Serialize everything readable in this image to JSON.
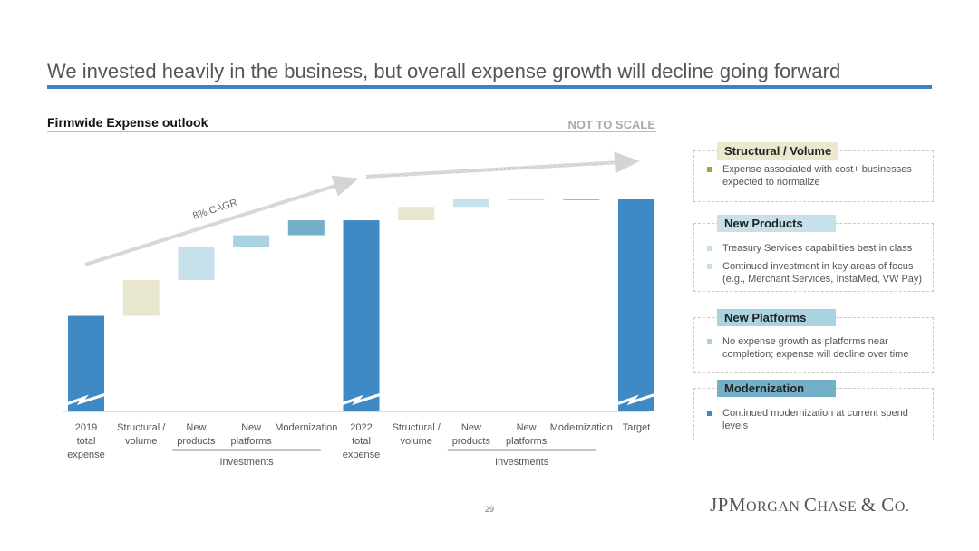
{
  "title": "We invested heavily in the business, but overall expense growth will decline going forward",
  "subtitle": "Firmwide Expense outlook",
  "scale_note": "NOT TO SCALE",
  "cagr_label": "8% CAGR",
  "page_number": "29",
  "logo_text": "JPMorgan Chase & Co.",
  "colors": {
    "total": "#3f89c5",
    "structural": "#e8e6cf",
    "new_products": "#c6e1ea",
    "new_platforms": "#a9d3e1",
    "modernization": "#73afc6",
    "accent_rule": "#3b84c2"
  },
  "chart_data": {
    "type": "bar",
    "subtype": "waterfall",
    "title": "Firmwide Expense outlook",
    "note": "NOT TO SCALE",
    "categories": [
      "2019 total expense",
      "Structural / volume",
      "New products",
      "New platforms",
      "Modernization",
      "2022 total expense",
      "Structural / volume",
      "New products",
      "New platforms",
      "Modernization",
      "Target"
    ],
    "tick_labels": [
      [
        "2019",
        "total",
        "expense"
      ],
      [
        "Structural /",
        "volume"
      ],
      [
        "New",
        "products"
      ],
      [
        "New",
        "platforms"
      ],
      [
        "Modernization"
      ],
      [
        "2022",
        "total",
        "expense"
      ],
      [
        "Structural /",
        "volume"
      ],
      [
        "New",
        "products"
      ],
      [
        "New",
        "platforms"
      ],
      [
        "Modernization"
      ],
      [
        "Target"
      ]
    ],
    "bars": [
      {
        "kind": "total",
        "value": 100
      },
      {
        "kind": "structural",
        "start": 100,
        "end": 112
      },
      {
        "kind": "new_products",
        "start": 112,
        "end": 123
      },
      {
        "kind": "new_platforms",
        "start": 123,
        "end": 127
      },
      {
        "kind": "modernization",
        "start": 127,
        "end": 132
      },
      {
        "kind": "total",
        "value": 132
      },
      {
        "kind": "structural",
        "start": 132,
        "end": 136.5
      },
      {
        "kind": "new_products",
        "start": 136.5,
        "end": 139
      },
      {
        "kind": "new_platforms",
        "start": 139,
        "end": 139
      },
      {
        "kind": "modernization",
        "start": 139,
        "end": 139
      },
      {
        "kind": "total",
        "value": 139
      }
    ],
    "group_labels": [
      {
        "label": "Investments",
        "from": 2,
        "to": 4
      },
      {
        "label": "Investments",
        "from": 7,
        "to": 9
      }
    ],
    "axis_break": true,
    "ylim": [
      68,
      150
    ],
    "grid": false,
    "legend": "none"
  },
  "panels": [
    {
      "heading": "Structural / Volume",
      "heading_color": "#ece8cf",
      "bullet_color": "#8db040",
      "bullets": [
        [
          "Expense associated with cost+ businesses",
          "expected to normalize"
        ]
      ]
    },
    {
      "heading": "New Products",
      "heading_color": "#c6e1ea",
      "bullet_color": "#c6e1ea",
      "bullets": [
        [
          "Treasury Services capabilities best in class"
        ],
        [
          "Continued investment in key areas of focus",
          "(e.g., Merchant Services, InstaMed, VW Pay)"
        ]
      ]
    },
    {
      "heading": "New Platforms",
      "heading_color": "#a9d3e1",
      "bullet_color": "#a9d3e1",
      "bullets": [
        [
          "No expense growth as platforms near",
          "completion; expense will decline over time"
        ]
      ]
    },
    {
      "heading": "Modernization",
      "heading_color": "#73afc6",
      "bullet_color": "#3f89c5",
      "bullets": [
        [
          "Continued modernization at current spend",
          "levels"
        ]
      ]
    }
  ]
}
